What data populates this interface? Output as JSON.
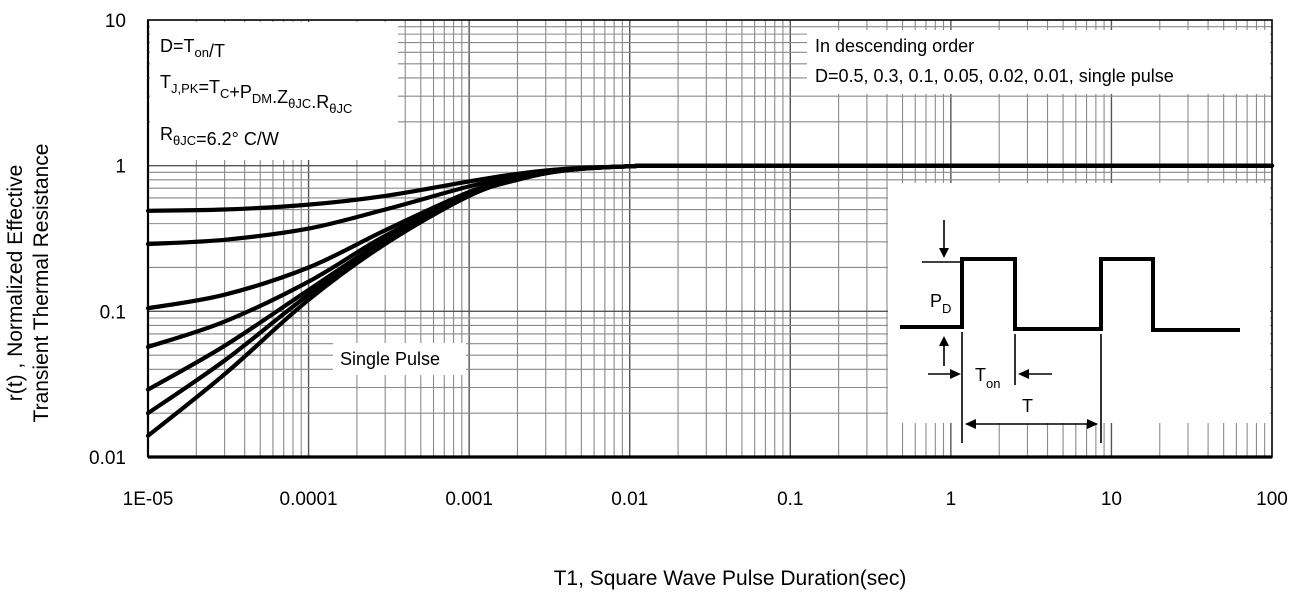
{
  "chart_data": {
    "type": "line",
    "title": "",
    "xlabel": "T1, Square Wave Pulse Duration(sec)",
    "ylabel_lines": [
      "r(t) , Normalized Effective",
      "Transient Thermal Resistance"
    ],
    "xscale": "log",
    "yscale": "log",
    "xlim": [
      1e-05,
      100
    ],
    "ylim": [
      0.01,
      10
    ],
    "grid": true,
    "x_tick_labels": [
      "1E-05",
      "0.0001",
      "0.001",
      "0.01",
      "0.1",
      "1",
      "10",
      "100"
    ],
    "y_tick_labels": [
      "0.01",
      "0.1",
      "1",
      "10"
    ],
    "annotations": {
      "formula_box": {
        "line1": "D=T",
        "line1_sub": "on",
        "line1_tail": "/T",
        "line2_parts": [
          [
            "T",
            ""
          ],
          [
            "J,PK",
            "sub"
          ],
          [
            "=T",
            ""
          ],
          [
            "C",
            "sub"
          ],
          [
            "+P",
            ""
          ],
          [
            "DM",
            "sub"
          ],
          [
            ".Z",
            ""
          ],
          [
            "θJC",
            "sub"
          ],
          [
            ".R",
            ""
          ],
          [
            "θJC",
            "sub"
          ]
        ],
        "line3_parts": [
          [
            "R",
            ""
          ],
          [
            "θJC",
            "sub"
          ],
          [
            "=6.2° C/W",
            ""
          ]
        ]
      },
      "order_title": "In descending order",
      "order_list": "D=0.5, 0.3, 0.1, 0.05, 0.02, 0.01, single pulse",
      "single_pulse_label": "Single Pulse",
      "inset": {
        "pd": "P",
        "pd_sub": "D",
        "ton": "T",
        "ton_sub": "on",
        "t": "T"
      }
    },
    "series": [
      {
        "name": "D=0.5",
        "x": [
          1e-05,
          3e-05,
          0.0001,
          0.0003,
          0.001,
          0.002,
          0.004,
          0.01,
          0.03,
          100
        ],
        "y": [
          0.49,
          0.5,
          0.54,
          0.62,
          0.78,
          0.88,
          0.95,
          0.99,
          1,
          1
        ]
      },
      {
        "name": "D=0.3",
        "x": [
          1e-05,
          3e-05,
          0.0001,
          0.0003,
          0.001,
          0.002,
          0.004,
          0.01,
          0.03,
          100
        ],
        "y": [
          0.29,
          0.31,
          0.37,
          0.5,
          0.72,
          0.85,
          0.94,
          0.99,
          1,
          1
        ]
      },
      {
        "name": "D=0.1",
        "x": [
          1e-05,
          3e-05,
          0.0001,
          0.0003,
          0.001,
          0.002,
          0.004,
          0.01,
          0.03,
          100
        ],
        "y": [
          0.105,
          0.13,
          0.2,
          0.36,
          0.66,
          0.83,
          0.94,
          0.99,
          1,
          1
        ]
      },
      {
        "name": "D=0.05",
        "x": [
          1e-05,
          3e-05,
          0.0001,
          0.0003,
          0.001,
          0.002,
          0.004,
          0.01,
          0.03,
          100
        ],
        "y": [
          0.057,
          0.085,
          0.16,
          0.33,
          0.64,
          0.82,
          0.93,
          0.99,
          1,
          1
        ]
      },
      {
        "name": "D=0.02",
        "x": [
          1e-05,
          3e-05,
          0.0001,
          0.0003,
          0.001,
          0.002,
          0.004,
          0.01,
          0.03,
          100
        ],
        "y": [
          0.029,
          0.058,
          0.14,
          0.31,
          0.63,
          0.81,
          0.93,
          0.99,
          1,
          1
        ]
      },
      {
        "name": "D=0.01",
        "x": [
          1e-05,
          3e-05,
          0.0001,
          0.0003,
          0.001,
          0.002,
          0.004,
          0.01,
          0.03,
          100
        ],
        "y": [
          0.02,
          0.046,
          0.13,
          0.3,
          0.62,
          0.81,
          0.93,
          0.99,
          1,
          1
        ]
      },
      {
        "name": "single pulse",
        "x": [
          1e-05,
          3e-05,
          0.0001,
          0.0003,
          0.001,
          0.002,
          0.004,
          0.01,
          0.03,
          100
        ],
        "y": [
          0.014,
          0.037,
          0.12,
          0.29,
          0.62,
          0.8,
          0.93,
          0.99,
          1,
          1
        ]
      }
    ]
  }
}
